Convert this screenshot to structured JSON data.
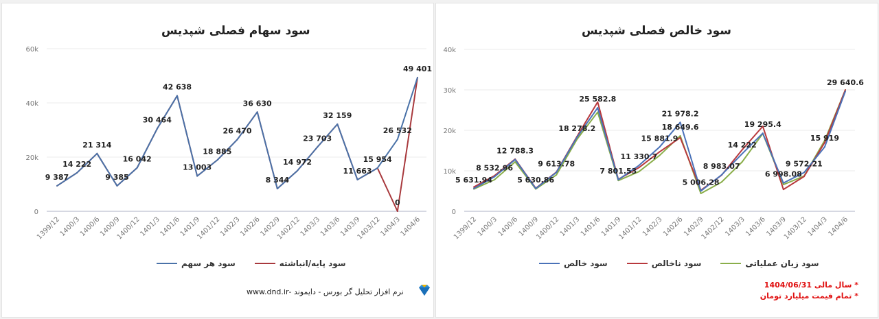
{
  "footer": {
    "text": "نرم افزار تحلیل گر بورس - دایموند -www.dnd.ir",
    "logo_icon": "diamond-icon"
  },
  "notes": [
    "* سال مالی 1404/06/31",
    "* تمام قیمت میلیارد تومان"
  ],
  "chart_data": [
    {
      "type": "line",
      "title": "سود سهام فصلی شپدیس",
      "categories": [
        "1399/12",
        "1400/3",
        "1400/6",
        "1400/9",
        "1400/12",
        "1401/3",
        "1401/6",
        "1401/9",
        "1401/12",
        "1402/3",
        "1402/6",
        "1402/9",
        "1402/12",
        "1403/3",
        "1403/6",
        "1403/9",
        "1403/12",
        "1404/3",
        "1404/6"
      ],
      "yticks": [
        "0",
        "20k",
        "40k",
        "60k"
      ],
      "ylim": [
        0,
        60000
      ],
      "grid": true,
      "legend": "bottom",
      "series": [
        {
          "name": "سود هر سهم",
          "color": "#4a72a8",
          "values": [
            9387,
            14222,
            21314,
            9385,
            16042,
            30464,
            42638,
            13003,
            18885,
            26470,
            36630,
            8344,
            14972,
            23703,
            32159,
            11663,
            15954,
            26532,
            49401
          ]
        },
        {
          "name": "سود پایه/انباشته",
          "color": "#a8393d",
          "values": [
            9387,
            14222,
            21314,
            9385,
            16042,
            30464,
            42638,
            13003,
            18885,
            26470,
            36630,
            8344,
            14972,
            23703,
            32159,
            11663,
            15954,
            0,
            49401
          ]
        }
      ],
      "data_labels": [
        "9 387",
        "14 222",
        "21 314",
        "9 385",
        "16 042",
        "30 464",
        "42 638",
        "13 003",
        "18 885",
        "26 470",
        "36 630",
        "8 344",
        "14 972",
        "23 703",
        "32 159",
        "11 663",
        "15 954",
        "26 532",
        "49 401"
      ],
      "extra_labels": [
        {
          "category": "1404/3",
          "value": 0,
          "text": "0"
        }
      ]
    },
    {
      "type": "line",
      "title": "سود خالص فصلی شپدیس",
      "categories": [
        "1399/12",
        "1400/3",
        "1400/6",
        "1400/9",
        "1400/12",
        "1401/3",
        "1401/6",
        "1401/9",
        "1401/12",
        "1402/3",
        "1402/6",
        "1402/9",
        "1402/12",
        "1403/3",
        "1403/6",
        "1403/9",
        "1403/12",
        "1404/3",
        "1404/6"
      ],
      "yticks": [
        "0",
        "10k",
        "20k",
        "30k",
        "40k"
      ],
      "ylim": [
        0,
        40000
      ],
      "grid": true,
      "legend": "bottom",
      "series": [
        {
          "name": "سود خالص",
          "color": "#4a72b8",
          "values": [
            5631.94,
            8532.96,
            12788.3,
            5630.86,
            9613.78,
            18278.2,
            25582.8,
            7801.53,
            11330.7,
            15881.9,
            21978.2,
            5006.28,
            8983.07,
            14222,
            19295.4,
            6998.08,
            9572.21,
            15919,
            29640.6
          ]
        },
        {
          "name": "سود ناخالص",
          "color": "#b8393d",
          "values": [
            6000,
            8800,
            12900,
            5700,
            9700,
            18500,
            27000,
            7900,
            10800,
            14700,
            18200,
            5200,
            8900,
            15200,
            21000,
            5400,
            8600,
            17000,
            30000
          ]
        },
        {
          "name": "سود زیان عملیاتی",
          "color": "#8aae4a",
          "values": [
            5500,
            7800,
            12200,
            5500,
            9000,
            17800,
            24500,
            7600,
            9800,
            13800,
            18649.6,
            4400,
            7200,
            12200,
            19200,
            6600,
            8700,
            17500,
            30000
          ]
        }
      ],
      "data_labels": [
        "5 631.94",
        "8 532.96",
        "12 788.3",
        "5 630.86",
        "9 613.78",
        "18 278.2",
        "25 582.8",
        "7 801.53",
        "11 330.7",
        "15 881.9",
        "21 978.2",
        "5 006.28",
        "8 983.07",
        "14 222",
        "19 295.4",
        "6 998.08",
        "9 572.21",
        "15 919",
        "29 640.6"
      ],
      "extra_labels": [
        {
          "category": "1402/6",
          "value": 18649.6,
          "text": "18 649.6"
        }
      ]
    }
  ]
}
